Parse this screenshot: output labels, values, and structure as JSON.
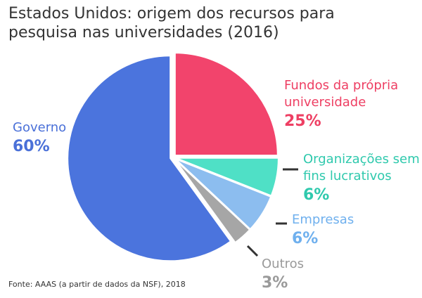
{
  "chart_data": {
    "type": "pie",
    "title": "Estados Unidos: origem dos recursos para pesquisa nas universidades (2016)",
    "categories": [
      "Fundos da própria universidade",
      "Organizações sem fins lucrativos",
      "Empresas",
      "Outros",
      "Governo"
    ],
    "values": [
      25,
      6,
      6,
      3,
      60
    ],
    "value_labels": [
      "25%",
      "6%",
      "6%",
      "3%",
      "60%"
    ],
    "colors": [
      "#f2446c",
      "#4fe0c6",
      "#8cbdef",
      "#a6a6a6",
      "#4b74dd"
    ],
    "label_colors": [
      "#ee3f63",
      "#2fc9ad",
      "#6fb0ee",
      "#9a9a9a",
      "#4a70d8"
    ],
    "source": "Fonte: AAAS (a partir de dados da NSF), 2018"
  }
}
